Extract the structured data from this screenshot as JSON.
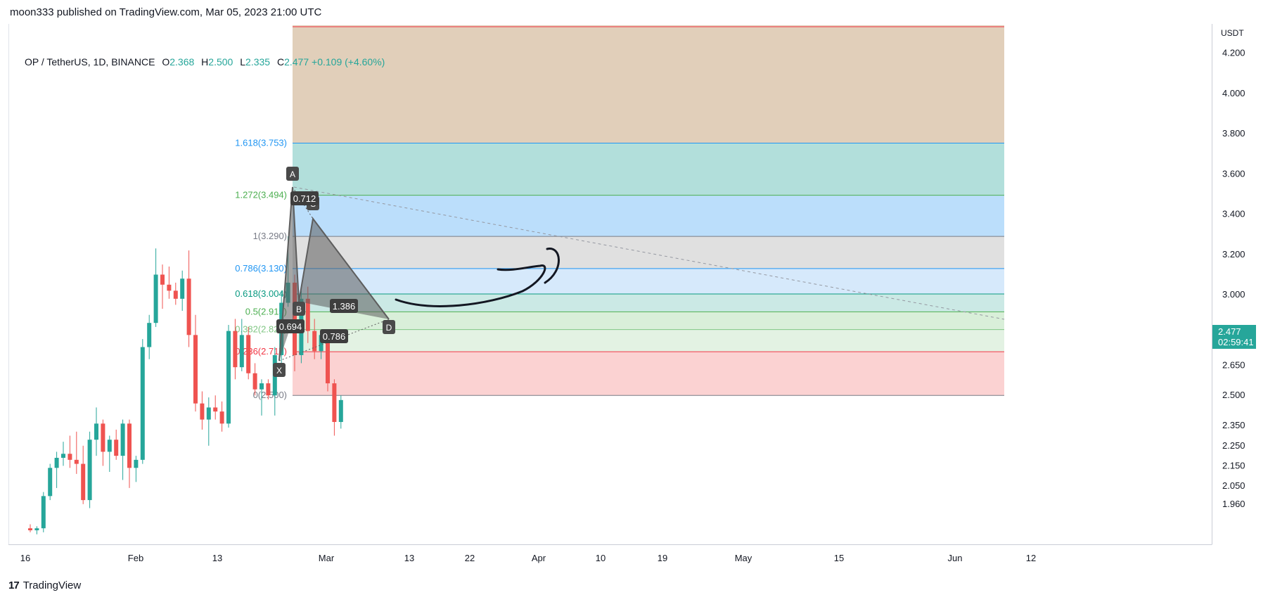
{
  "header": {
    "published": "moon333 published on TradingView.com, Mar 05, 2023 21:00 UTC"
  },
  "legend": {
    "symbol": "OP / TetherUS, 1D, BINANCE",
    "o_label": "O",
    "o": "2.368",
    "h_label": "H",
    "h": "2.500",
    "l_label": "L",
    "l": "2.335",
    "c_label": "C",
    "c": "2.477",
    "change": "+0.109 (+4.60%)"
  },
  "footer": {
    "brand": "TradingView",
    "logo_text": "17"
  },
  "colors": {
    "up": "#26a69a",
    "down": "#ef5350",
    "pattern": "#5d5d5d",
    "fib_blue": "#2196f3",
    "fib_green": "#4caf50"
  },
  "chart_data": {
    "type": "candlestick",
    "symbol": "OP / TetherUS",
    "timeframe": "1D",
    "exchange": "BINANCE",
    "currency": "USDT",
    "last_price": "2.477",
    "countdown": "02:59:41",
    "price_axis_ticks": [
      "4.200",
      "4.000",
      "3.800",
      "3.600",
      "3.400",
      "3.200",
      "3.000",
      "2.800",
      "2.650",
      "2.500",
      "2.350",
      "2.250",
      "2.150",
      "2.050",
      "1.960"
    ],
    "time_axis_ticks": [
      "16",
      "Feb",
      "13",
      "Mar",
      "13",
      "22",
      "Apr",
      "10",
      "19",
      "May",
      "15",
      "Jun",
      "12"
    ],
    "candles": [
      {
        "o": 1.84,
        "h": 1.86,
        "l": 1.82,
        "c": 1.83
      },
      {
        "o": 1.83,
        "h": 1.85,
        "l": 1.81,
        "c": 1.84
      },
      {
        "o": 1.84,
        "h": 2.02,
        "l": 1.82,
        "c": 2.0
      },
      {
        "o": 2.0,
        "h": 2.16,
        "l": 1.98,
        "c": 2.14
      },
      {
        "o": 2.14,
        "h": 2.22,
        "l": 2.04,
        "c": 2.19
      },
      {
        "o": 2.19,
        "h": 2.27,
        "l": 2.15,
        "c": 2.21
      },
      {
        "o": 2.21,
        "h": 2.3,
        "l": 2.14,
        "c": 2.18
      },
      {
        "o": 2.18,
        "h": 2.32,
        "l": 2.11,
        "c": 2.16
      },
      {
        "o": 2.16,
        "h": 2.25,
        "l": 1.96,
        "c": 1.98
      },
      {
        "o": 1.98,
        "h": 2.32,
        "l": 1.94,
        "c": 2.28
      },
      {
        "o": 2.28,
        "h": 2.44,
        "l": 2.2,
        "c": 2.36
      },
      {
        "o": 2.36,
        "h": 2.38,
        "l": 2.15,
        "c": 2.22
      },
      {
        "o": 2.22,
        "h": 2.3,
        "l": 2.12,
        "c": 2.28
      },
      {
        "o": 2.28,
        "h": 2.33,
        "l": 2.18,
        "c": 2.2
      },
      {
        "o": 2.2,
        "h": 2.38,
        "l": 2.08,
        "c": 2.36
      },
      {
        "o": 2.36,
        "h": 2.38,
        "l": 2.04,
        "c": 2.14
      },
      {
        "o": 2.14,
        "h": 2.2,
        "l": 2.07,
        "c": 2.18
      },
      {
        "o": 2.18,
        "h": 2.78,
        "l": 2.16,
        "c": 2.74
      },
      {
        "o": 2.74,
        "h": 2.9,
        "l": 2.68,
        "c": 2.86
      },
      {
        "o": 2.86,
        "h": 3.23,
        "l": 2.84,
        "c": 3.1
      },
      {
        "o": 3.1,
        "h": 3.15,
        "l": 2.93,
        "c": 3.05
      },
      {
        "o": 3.05,
        "h": 3.14,
        "l": 2.98,
        "c": 3.02
      },
      {
        "o": 3.02,
        "h": 3.06,
        "l": 2.95,
        "c": 2.98
      },
      {
        "o": 2.98,
        "h": 3.12,
        "l": 2.92,
        "c": 3.08
      },
      {
        "o": 3.08,
        "h": 3.22,
        "l": 2.74,
        "c": 2.8
      },
      {
        "o": 2.8,
        "h": 2.9,
        "l": 2.42,
        "c": 2.46
      },
      {
        "o": 2.46,
        "h": 2.52,
        "l": 2.33,
        "c": 2.38
      },
      {
        "o": 2.38,
        "h": 2.49,
        "l": 2.25,
        "c": 2.44
      },
      {
        "o": 2.44,
        "h": 2.5,
        "l": 2.38,
        "c": 2.42
      },
      {
        "o": 2.42,
        "h": 2.47,
        "l": 2.32,
        "c": 2.36
      },
      {
        "o": 2.36,
        "h": 2.85,
        "l": 2.34,
        "c": 2.82
      },
      {
        "o": 2.82,
        "h": 2.88,
        "l": 2.58,
        "c": 2.64
      },
      {
        "o": 2.64,
        "h": 2.88,
        "l": 2.62,
        "c": 2.8
      },
      {
        "o": 2.8,
        "h": 2.84,
        "l": 2.58,
        "c": 2.61
      },
      {
        "o": 2.61,
        "h": 2.66,
        "l": 2.5,
        "c": 2.53
      },
      {
        "o": 2.53,
        "h": 2.58,
        "l": 2.4,
        "c": 2.56
      },
      {
        "o": 2.56,
        "h": 2.58,
        "l": 2.48,
        "c": 2.5
      },
      {
        "o": 2.5,
        "h": 2.74,
        "l": 2.4,
        "c": 2.7
      },
      {
        "o": 2.7,
        "h": 3.02,
        "l": 2.66,
        "c": 2.96
      },
      {
        "o": 2.96,
        "h": 3.29,
        "l": 2.94,
        "c": 3.06
      },
      {
        "o": 3.06,
        "h": 3.1,
        "l": 2.62,
        "c": 2.7
      },
      {
        "o": 2.7,
        "h": 3.02,
        "l": 2.66,
        "c": 2.98
      },
      {
        "o": 2.98,
        "h": 3.04,
        "l": 2.76,
        "c": 2.82
      },
      {
        "o": 2.82,
        "h": 2.88,
        "l": 2.68,
        "c": 2.72
      },
      {
        "o": 2.72,
        "h": 2.82,
        "l": 2.68,
        "c": 2.8
      },
      {
        "o": 2.8,
        "h": 2.8,
        "l": 2.52,
        "c": 2.56
      },
      {
        "o": 2.56,
        "h": 2.58,
        "l": 2.3,
        "c": 2.368
      },
      {
        "o": 2.368,
        "h": 2.5,
        "l": 2.335,
        "c": 2.477
      }
    ],
    "pattern": {
      "points": [
        {
          "label": "X",
          "price": 2.35
        },
        {
          "label": "A",
          "price": 3.29
        },
        {
          "label": "B",
          "price": 2.64
        },
        {
          "label": "C",
          "price": 3.1
        },
        {
          "label": "D",
          "price": 2.5
        }
      ],
      "ratios": [
        "0.694",
        "0.712",
        "1.386",
        "0.786"
      ]
    },
    "fib_levels": [
      {
        "label": "1.618(3.753)",
        "price": 3.753,
        "color": "#2196f3",
        "fill": "#b2dfdb"
      },
      {
        "label": "1.272(3.494)",
        "price": 3.494,
        "color": "#4caf50",
        "fill": "#bbdefb"
      },
      {
        "label": "1(3.290)",
        "price": 3.29,
        "color": "#787b86",
        "fill": "#e0e0e0"
      },
      {
        "label": "0.786(3.130)",
        "price": 3.13,
        "color": "#2196f3",
        "fill": "#d6e9fb"
      },
      {
        "label": "0.618(3.004)",
        "price": 3.004,
        "color": "#089981",
        "fill": "#cbe9e5"
      },
      {
        "label": "0.5(2.915)",
        "price": 2.915,
        "color": "#4caf50",
        "fill": "#d9efd9"
      },
      {
        "label": "0.382(2.827)",
        "price": 2.827,
        "color": "#81c784",
        "fill": "#e3f2e3"
      },
      {
        "label": "0.236(2.717)",
        "price": 2.717,
        "color": "#f23645",
        "fill": "#fbd2d2"
      },
      {
        "label": "0(2.500)",
        "price": 2.5,
        "color": "#787b86",
        "fill": ""
      }
    ],
    "top_zone_fill": "#e1cfba",
    "grid": false
  }
}
